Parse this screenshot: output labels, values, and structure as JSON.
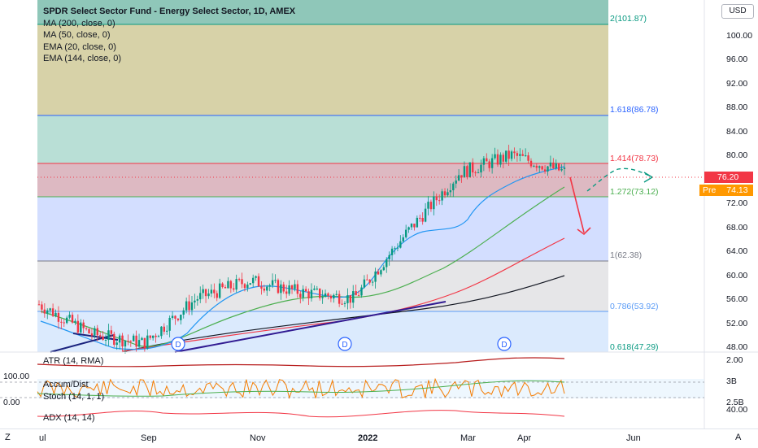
{
  "legend": {
    "title": "SPDR Select Sector Fund - Energy Select Sector, 1D, AMEX",
    "ma200": "MA (200, close, 0)",
    "ma50": "MA (50, close, 0)",
    "ema20": "EMA (20, close, 0)",
    "ema144": "EMA (144, close, 0)"
  },
  "currency_button": "USD",
  "price_axis": [
    "100.00",
    "96.00",
    "92.00",
    "88.00",
    "84.00",
    "80.00",
    "76.00",
    "72.00",
    "68.00",
    "64.00",
    "60.00",
    "56.00",
    "52.00",
    "48.00"
  ],
  "fib_levels": [
    {
      "label": "2(101.87)",
      "color": "#089981"
    },
    {
      "label": "1.618(86.78)",
      "color": "#2962ff"
    },
    {
      "label": "1.414(78.73)",
      "color": "#f23645"
    },
    {
      "label": "1.272(73.12)",
      "color": "#4caf50"
    },
    {
      "label": "1(62.38)",
      "color": "#787b86"
    },
    {
      "label": "0.786(53.92)",
      "color": "#5b9cf6"
    },
    {
      "label": "0.618(47.29)",
      "color": "#089981"
    }
  ],
  "price_tags": {
    "last": "76.20",
    "pre_label": "Pre",
    "pre": "74.13"
  },
  "dividend_marker": "D",
  "indicators": {
    "atr": "ATR (14, RMA)",
    "atr_axis": "2.00",
    "accum": "Accum/Dist",
    "accum_axis": "3B",
    "stoch": "Stoch (14, 1, 1)",
    "stoch_axis": "2.5B",
    "stoch_left_top": "100.00",
    "stoch_left_bottom": "0.00",
    "adx": "ADX (14, 14)",
    "adx_axis": "40.00"
  },
  "time_axis": [
    "ul",
    "Sep",
    "Nov",
    "2022",
    "Mar",
    "Apr",
    "Jun"
  ],
  "bottom": {
    "left": "Z",
    "right": "A"
  },
  "chart_data": {
    "type": "candlestick",
    "title": "SPDR Select Sector Fund - Energy Select Sector, 1D, AMEX",
    "ylim": [
      46,
      105
    ],
    "last_price": 76.2,
    "pre_market": 74.13,
    "fib_extensions": [
      101.87,
      86.78,
      78.73,
      73.12,
      62.38,
      53.92,
      47.29
    ],
    "close_path_approx": [
      {
        "x": "Jul",
        "y": 54
      },
      {
        "x": "Aug",
        "y": 49
      },
      {
        "x": "Sep",
        "y": 47.5
      },
      {
        "x": "Oct",
        "y": 55
      },
      {
        "x": "Nov",
        "y": 58
      },
      {
        "x": "Dec",
        "y": 56
      },
      {
        "x": "2022",
        "y": 55
      },
      {
        "x": "Feb",
        "y": 66
      },
      {
        "x": "Mar",
        "y": 76
      },
      {
        "x": "Apr",
        "y": 79
      },
      {
        "x": "Apr-end",
        "y": 76.2
      }
    ],
    "series": [
      {
        "name": "MA (200, close, 0)",
        "color": "#131722"
      },
      {
        "name": "MA (50, close, 0)",
        "color": "#f23645"
      },
      {
        "name": "EMA (20, close, 0)",
        "color": "#2196f3"
      },
      {
        "name": "EMA (144, close, 0)",
        "color": "#4caf50"
      }
    ]
  }
}
